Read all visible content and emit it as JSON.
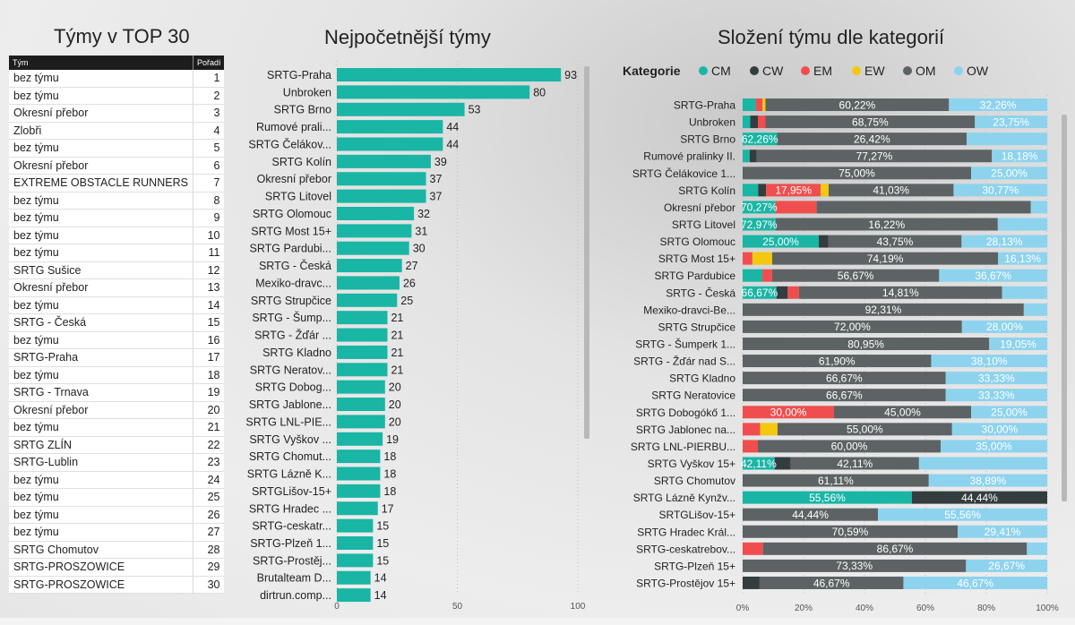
{
  "table": {
    "title": "Týmy v TOP 30",
    "headers": [
      "Tým",
      "Pořadí"
    ],
    "rows": [
      [
        "bez týmu",
        "1"
      ],
      [
        "bez týmu",
        "2"
      ],
      [
        "Okresní přebor",
        "3"
      ],
      [
        "Zlobři",
        "4"
      ],
      [
        "bez týmu",
        "5"
      ],
      [
        "Okresní přebor",
        "6"
      ],
      [
        "EXTREME OBSTACLE RUNNERS",
        "7"
      ],
      [
        "bez týmu",
        "8"
      ],
      [
        "bez týmu",
        "9"
      ],
      [
        "bez týmu",
        "10"
      ],
      [
        "bez týmu",
        "11"
      ],
      [
        "SRTG Sušice",
        "12"
      ],
      [
        "Okresní přebor",
        "13"
      ],
      [
        "bez týmu",
        "14"
      ],
      [
        "SRTG - Česká",
        "15"
      ],
      [
        "bez týmu",
        "16"
      ],
      [
        "SRTG-Praha",
        "17"
      ],
      [
        "bez týmu",
        "18"
      ],
      [
        "SRTG - Trnava",
        "19"
      ],
      [
        "Okresní přebor",
        "20"
      ],
      [
        "bez týmu",
        "21"
      ],
      [
        "SRTG ZLÍN",
        "22"
      ],
      [
        "SRTG-Lublin",
        "23"
      ],
      [
        "bez týmu",
        "24"
      ],
      [
        "bez týmu",
        "25"
      ],
      [
        "bez týmu",
        "26"
      ],
      [
        "bez týmu",
        "27"
      ],
      [
        "SRTG Chomutov",
        "28"
      ],
      [
        "SRTG-PROSZOWICE",
        "29"
      ],
      [
        "SRTG-PROSZOWICE",
        "30"
      ]
    ]
  },
  "chart_data": [
    {
      "type": "bar",
      "orientation": "horizontal",
      "title": "Nejpočetnější týmy",
      "categories": [
        "SRTG-Praha",
        "Unbroken",
        "SRTG Brno",
        "Rumové prali...",
        "SRTG Čelákov...",
        "SRTG Kolín",
        "Okresní přebor",
        "SRTG Litovel",
        "SRTG Olomouc",
        "SRTG Most 15+",
        "SRTG Pardubi...",
        "SRTG - Česká",
        "Mexiko-dravc...",
        "SRTG Strupčice",
        "SRTG - Šump...",
        "SRTG - Žďár ...",
        "SRTG Kladno",
        "SRTG Neratov...",
        "SRTG Dobog...",
        "SRTG Jablone...",
        "SRTG LNL-PIE...",
        "SRTG Vyškov ...",
        "SRTG Chomut...",
        "SRTG Lázně K...",
        "SRTGLišov-15+",
        "SRTG Hradec ...",
        "SRTG-ceskatr...",
        "SRTG-Plzeň 1...",
        "SRTG-Prostěj...",
        "Brutalteam D...",
        "dirtrun.comp..."
      ],
      "values": [
        93,
        80,
        53,
        44,
        44,
        39,
        37,
        37,
        32,
        31,
        30,
        27,
        26,
        25,
        21,
        21,
        21,
        21,
        20,
        20,
        20,
        19,
        18,
        18,
        18,
        17,
        15,
        15,
        15,
        14,
        14
      ],
      "xlim": [
        0,
        100
      ],
      "xticks": [
        "0",
        "50",
        "100"
      ],
      "color": "#19b5a5"
    },
    {
      "type": "bar",
      "orientation": "horizontal",
      "stacked": "percent",
      "title": "Složení týmu dle kategorií",
      "legend_title": "Kategorie",
      "legend": "top",
      "categories": [
        "SRTG-Praha",
        "Unbroken",
        "SRTG Brno",
        "Rumové pralinky II.",
        "SRTG Čelákovice 1...",
        "SRTG Kolín",
        "Okresní přebor",
        "SRTG Litovel",
        "SRTG Olomouc",
        "SRTG Most 15+",
        "SRTG Pardubice",
        "SRTG - Česká",
        "Mexiko-dravci-Be...",
        "SRTG Strupčice",
        "SRTG - Šumperk 1...",
        "SRTG - Žďár nad S...",
        "SRTG Kladno",
        "SRTG Neratovice",
        "SRTG Dobogókő 1...",
        "SRTG Jablonec na...",
        "SRTG LNL-PIERBU...",
        "SRTG Vyškov 15+",
        "SRTG Chomutov",
        "SRTG Lázně Kynžv...",
        "SRTGLišov-15+",
        "SRTG Hradec Král...",
        "SRTG-ceskatrebov...",
        "SRTG-Plzeň 15+",
        "SRTG-Prostějov 15+"
      ],
      "series": [
        {
          "name": "CM",
          "color": "#19b5a5",
          "values": [
            4.3,
            2.5,
            11.3,
            2.3,
            0,
            5.1,
            10.8,
            10.8,
            25,
            0,
            6.7,
            11.1,
            0,
            0,
            0,
            0,
            0,
            0,
            0,
            0,
            0,
            10.5,
            0,
            55.56,
            0,
            0,
            0,
            0,
            0
          ]
        },
        {
          "name": "CW",
          "color": "#333d3f",
          "values": [
            0,
            2.5,
            0,
            2.3,
            0,
            2.6,
            0,
            0,
            3.1,
            0,
            0,
            3.7,
            0,
            0,
            0,
            0,
            0,
            0,
            0,
            0,
            0,
            5.3,
            0,
            44.44,
            0,
            0,
            0,
            0,
            5.5
          ]
        },
        {
          "name": "EM",
          "color": "#f04e4e",
          "values": [
            2.2,
            2.5,
            0,
            0,
            0,
            17.95,
            13.5,
            0,
            0,
            3.2,
            3.3,
            3.7,
            0,
            0,
            0,
            0,
            0,
            0,
            30,
            5.5,
            5,
            0,
            0,
            0,
            0,
            0,
            6.67,
            0,
            0
          ]
        },
        {
          "name": "EW",
          "color": "#f2c811",
          "values": [
            1.0,
            0,
            0,
            0,
            0,
            2.6,
            0,
            0,
            0,
            6.5,
            0,
            0,
            0,
            0,
            0,
            0,
            0,
            0,
            0,
            5.5,
            0,
            0,
            0,
            0,
            0,
            0,
            0,
            0,
            0
          ]
        },
        {
          "name": "OM",
          "color": "#5d6364",
          "values": [
            60.22,
            68.75,
            62.26,
            77.27,
            75,
            41.03,
            70.27,
            72.97,
            43.75,
            74.19,
            56.67,
            66.67,
            92.31,
            72,
            80.95,
            61.9,
            66.67,
            66.67,
            45,
            55,
            60,
            42.11,
            61.11,
            0,
            44.44,
            70.59,
            86.67,
            73.33,
            46.67
          ]
        },
        {
          "name": "OW",
          "color": "#8dd3ee",
          "values": [
            32.26,
            23.75,
            26.42,
            18.18,
            25,
            30.77,
            5.4,
            16.22,
            28.13,
            16.13,
            36.67,
            14.81,
            7.69,
            28,
            19.05,
            38.1,
            33.33,
            33.33,
            25,
            30,
            35,
            42.11,
            38.89,
            0,
            55.56,
            29.41,
            6.67,
            26.67,
            46.67
          ]
        }
      ],
      "data_labels": [
        [
          "60,22%",
          "32,26%"
        ],
        [
          "68,75%",
          "23,75%"
        ],
        [
          "62,26%",
          "26,42%"
        ],
        [
          "77,27%",
          "18,18%"
        ],
        [
          "75,00%",
          "25,00%"
        ],
        [
          "17,95%",
          "41,03%",
          "30,77%"
        ],
        [
          "70,27%"
        ],
        [
          "72,97%",
          "16,22%"
        ],
        [
          "25,00%",
          "43,75%",
          "28,13%"
        ],
        [
          "74,19%",
          "16,13%"
        ],
        [
          "56,67%",
          "36,67%"
        ],
        [
          "66,67%",
          "14,81%"
        ],
        [
          "92,31%"
        ],
        [
          "72,00%",
          "28,00%"
        ],
        [
          "80,95%",
          "19,05%"
        ],
        [
          "61,90%",
          "38,10%"
        ],
        [
          "66,67%",
          "33,33%"
        ],
        [
          "66,67%",
          "33,33%"
        ],
        [
          "30,00%",
          "45,00%",
          "25,00%"
        ],
        [
          "55,00%",
          "30,00%"
        ],
        [
          "60,00%",
          "35,00%"
        ],
        [
          "42,11%",
          "42,11%"
        ],
        [
          "61,11%",
          "38,89%"
        ],
        [
          "55,56%",
          "44,44%"
        ],
        [
          "44,44%",
          "55,56%"
        ],
        [
          "70,59%",
          "29,41%"
        ],
        [
          "86,67%"
        ],
        [
          "73,33%",
          "26,67%"
        ],
        [
          "46,67%",
          "46,67%"
        ]
      ],
      "xticks": [
        "0%",
        "20%",
        "40%",
        "60%",
        "80%",
        "100%"
      ]
    }
  ]
}
